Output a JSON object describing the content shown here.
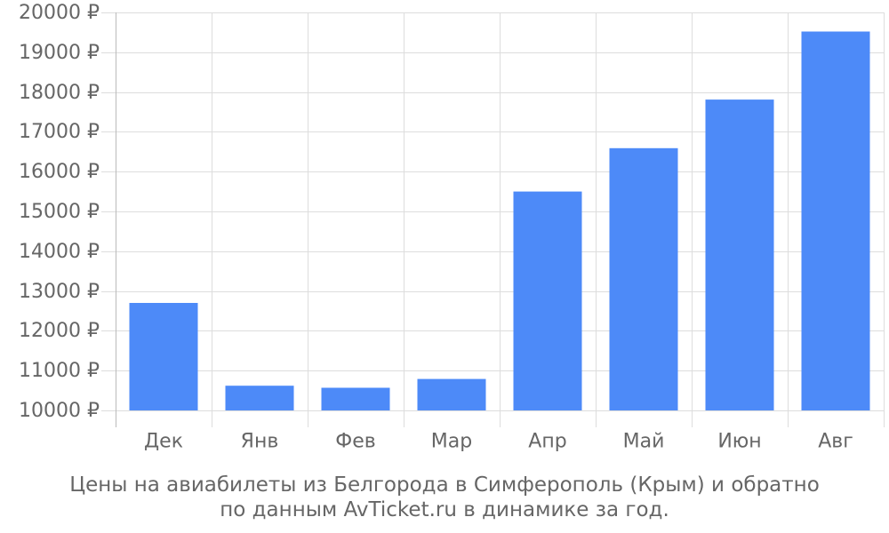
{
  "chart_data": {
    "type": "bar",
    "categories": [
      "Дек",
      "Янв",
      "Фев",
      "Мар",
      "Апр",
      "Май",
      "Июн",
      "Авг"
    ],
    "values": [
      12700,
      10620,
      10570,
      10790,
      15500,
      16590,
      17810,
      19520
    ],
    "ylim": [
      10000,
      20000
    ],
    "yticks": [
      10000,
      11000,
      12000,
      13000,
      14000,
      15000,
      16000,
      17000,
      18000,
      19000,
      20000
    ],
    "ytick_labels": [
      "10000 ₽",
      "11000 ₽",
      "12000 ₽",
      "13000 ₽",
      "14000 ₽",
      "15000 ₽",
      "16000 ₽",
      "17000 ₽",
      "18000 ₽",
      "19000 ₽",
      "20000 ₽"
    ],
    "grid": true,
    "bar_color": "#4d8af8",
    "grid_color": "#dddddd",
    "text_color": "#666666"
  },
  "caption": {
    "line1": "Цены на авиабилеты из Белгорода в Симферополь (Крым) и обратно",
    "line2": "по данным AvTicket.ru в динамике за год."
  }
}
